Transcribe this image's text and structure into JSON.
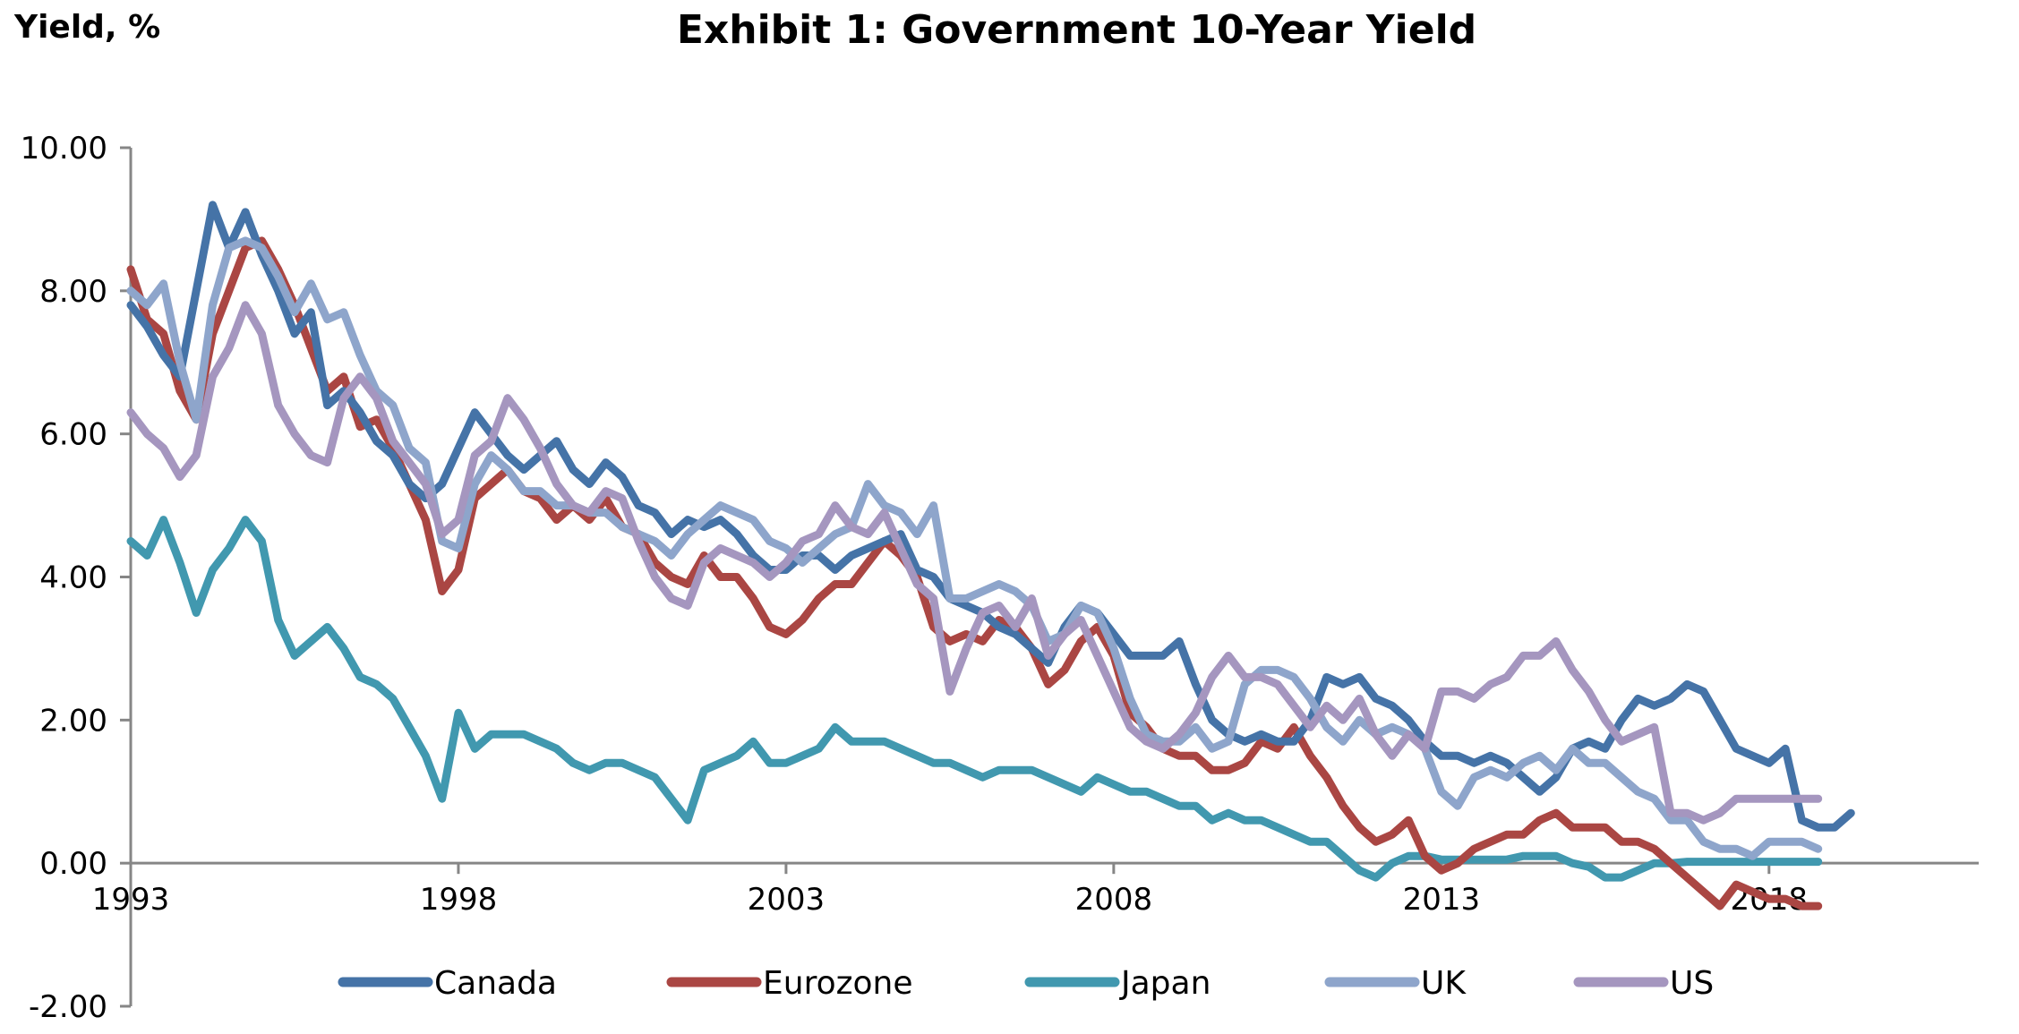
{
  "header": {
    "ylabel": "Yield, %",
    "title": "Exhibit 1: Government 10-Year Yield"
  },
  "chart_data": {
    "type": "line",
    "title": "Exhibit 1: Government 10-Year Yield",
    "xlabel": "",
    "ylabel": "Yield, %",
    "xlim": [
      1993,
      2021.2
    ],
    "ylim": [
      -2,
      10
    ],
    "y_ticks": [
      -2,
      0,
      2,
      4,
      6,
      8,
      10
    ],
    "y_tick_labels": [
      "-2.00",
      "0.00",
      "2.00",
      "4.00",
      "6.00",
      "8.00",
      "10.00"
    ],
    "x_ticks": [
      1993,
      1998,
      2003,
      2008,
      2013,
      2018
    ],
    "x_tick_labels": [
      "1993",
      "1998",
      "2003",
      "2008",
      "2013",
      "2018"
    ],
    "grid": false,
    "legend_position": "bottom",
    "x_start": 1993,
    "x_step": 0.25,
    "series": [
      {
        "name": "Canada",
        "color": "#4573A7",
        "values": [
          7.8,
          7.5,
          7.1,
          6.8,
          8.0,
          9.2,
          8.6,
          9.1,
          8.5,
          8.0,
          7.4,
          7.7,
          6.4,
          6.6,
          6.3,
          5.9,
          5.7,
          5.3,
          5.1,
          5.3,
          5.8,
          6.3,
          6.0,
          5.7,
          5.5,
          5.7,
          5.9,
          5.5,
          5.3,
          5.6,
          5.4,
          5.0,
          4.9,
          4.6,
          4.8,
          4.7,
          4.8,
          4.6,
          4.3,
          4.1,
          4.1,
          4.3,
          4.3,
          4.1,
          4.3,
          4.4,
          4.5,
          4.6,
          4.1,
          4.0,
          3.7,
          3.6,
          3.5,
          3.3,
          3.2,
          3.0,
          2.8,
          3.3,
          3.6,
          3.5,
          3.2,
          2.9,
          2.9,
          2.9,
          3.1,
          2.5,
          2.0,
          1.8,
          1.7,
          1.8,
          1.7,
          1.7,
          2.0,
          2.6,
          2.5,
          2.6,
          2.3,
          2.2,
          2.0,
          1.7,
          1.5,
          1.5,
          1.4,
          1.5,
          1.4,
          1.2,
          1.0,
          1.2,
          1.6,
          1.7,
          1.6,
          2.0,
          2.3,
          2.2,
          2.3,
          2.5,
          2.4,
          2.0,
          1.6,
          1.5,
          1.4,
          1.6,
          0.6,
          0.5,
          0.5,
          0.7
        ]
      },
      {
        "name": "Eurozone",
        "color": "#AA4643",
        "values": [
          8.3,
          7.6,
          7.4,
          6.6,
          6.2,
          7.4,
          8.0,
          8.6,
          8.7,
          8.3,
          7.8,
          7.2,
          6.6,
          6.8,
          6.1,
          6.2,
          5.8,
          5.3,
          4.8,
          3.8,
          4.1,
          5.1,
          5.3,
          5.5,
          5.2,
          5.1,
          4.8,
          5.0,
          4.8,
          5.1,
          4.7,
          4.6,
          4.2,
          4.0,
          3.9,
          4.3,
          4.0,
          4.0,
          3.7,
          3.3,
          3.2,
          3.4,
          3.7,
          3.9,
          3.9,
          4.2,
          4.5,
          4.3,
          4.0,
          3.3,
          3.1,
          3.2,
          3.1,
          3.4,
          3.3,
          3.0,
          2.5,
          2.7,
          3.1,
          3.3,
          2.9,
          2.1,
          1.9,
          1.6,
          1.5,
          1.5,
          1.3,
          1.3,
          1.4,
          1.7,
          1.6,
          1.9,
          1.5,
          1.2,
          0.8,
          0.5,
          0.3,
          0.4,
          0.6,
          0.1,
          -0.1,
          0.0,
          0.2,
          0.3,
          0.4,
          0.4,
          0.6,
          0.7,
          0.5,
          0.5,
          0.5,
          0.3,
          0.3,
          0.2,
          0.0,
          -0.2,
          -0.4,
          -0.6,
          -0.3,
          -0.4,
          -0.5,
          -0.5,
          -0.6,
          -0.6
        ]
      },
      {
        "name": "Japan",
        "color": "#4198AF",
        "values": [
          4.5,
          4.3,
          4.8,
          4.2,
          3.5,
          4.1,
          4.4,
          4.8,
          4.5,
          3.4,
          2.9,
          3.1,
          3.3,
          3.0,
          2.6,
          2.5,
          2.3,
          1.9,
          1.5,
          0.9,
          2.1,
          1.6,
          1.8,
          1.8,
          1.8,
          1.7,
          1.6,
          1.4,
          1.3,
          1.4,
          1.4,
          1.3,
          1.2,
          0.9,
          0.6,
          1.3,
          1.4,
          1.5,
          1.7,
          1.4,
          1.4,
          1.5,
          1.6,
          1.9,
          1.7,
          1.7,
          1.7,
          1.6,
          1.5,
          1.4,
          1.4,
          1.3,
          1.2,
          1.3,
          1.3,
          1.3,
          1.2,
          1.1,
          1.0,
          1.2,
          1.1,
          1.0,
          1.0,
          0.9,
          0.8,
          0.8,
          0.6,
          0.7,
          0.6,
          0.6,
          0.5,
          0.4,
          0.3,
          0.3,
          0.1,
          -0.1,
          -0.2,
          0.0,
          0.1,
          0.1,
          0.05,
          0.05,
          0.05,
          0.05,
          0.05,
          0.1,
          0.1,
          0.1,
          0.0,
          -0.05,
          -0.2,
          -0.2,
          -0.1,
          0.0,
          0.0,
          0.02,
          0.02,
          0.02,
          0.02,
          0.02,
          0.02,
          0.02,
          0.02,
          0.02
        ]
      },
      {
        "name": "UK",
        "color": "#8EA5CB",
        "values": [
          8.0,
          7.8,
          8.1,
          7.0,
          6.2,
          7.8,
          8.6,
          8.7,
          8.6,
          8.2,
          7.7,
          8.1,
          7.6,
          7.7,
          7.1,
          6.6,
          6.4,
          5.8,
          5.6,
          4.5,
          4.4,
          5.3,
          5.7,
          5.5,
          5.2,
          5.2,
          5.0,
          5.0,
          4.9,
          4.9,
          4.7,
          4.6,
          4.5,
          4.3,
          4.6,
          4.8,
          5.0,
          4.9,
          4.8,
          4.5,
          4.4,
          4.2,
          4.4,
          4.6,
          4.7,
          5.3,
          5.0,
          4.9,
          4.6,
          5.0,
          3.7,
          3.7,
          3.8,
          3.9,
          3.8,
          3.6,
          3.1,
          3.2,
          3.6,
          3.5,
          3.0,
          2.3,
          1.8,
          1.7,
          1.7,
          1.9,
          1.6,
          1.7,
          2.5,
          2.7,
          2.7,
          2.6,
          2.3,
          1.9,
          1.7,
          2.0,
          1.8,
          1.9,
          1.8,
          1.6,
          1.0,
          0.8,
          1.2,
          1.3,
          1.2,
          1.4,
          1.5,
          1.3,
          1.6,
          1.4,
          1.4,
          1.2,
          1.0,
          0.9,
          0.6,
          0.6,
          0.3,
          0.2,
          0.2,
          0.1,
          0.3,
          0.3,
          0.3,
          0.2
        ]
      },
      {
        "name": "US",
        "color": "#A596BF",
        "values": [
          6.3,
          6.0,
          5.8,
          5.4,
          5.7,
          6.8,
          7.2,
          7.8,
          7.4,
          6.4,
          6.0,
          5.7,
          5.6,
          6.5,
          6.8,
          6.5,
          5.9,
          5.6,
          5.3,
          4.6,
          4.8,
          5.7,
          5.9,
          6.5,
          6.2,
          5.8,
          5.3,
          5.0,
          4.9,
          5.2,
          5.1,
          4.5,
          4.0,
          3.7,
          3.6,
          4.2,
          4.4,
          4.3,
          4.2,
          4.0,
          4.2,
          4.5,
          4.6,
          5.0,
          4.7,
          4.6,
          4.9,
          4.4,
          3.9,
          3.7,
          2.4,
          3.0,
          3.5,
          3.6,
          3.3,
          3.7,
          2.9,
          3.2,
          3.4,
          2.9,
          2.4,
          1.9,
          1.7,
          1.6,
          1.8,
          2.1,
          2.6,
          2.9,
          2.6,
          2.6,
          2.5,
          2.2,
          1.9,
          2.2,
          2.0,
          2.3,
          1.8,
          1.5,
          1.8,
          1.6,
          2.4,
          2.4,
          2.3,
          2.5,
          2.6,
          2.9,
          2.9,
          3.1,
          2.7,
          2.4,
          2.0,
          1.7,
          1.8,
          1.9,
          0.7,
          0.7,
          0.6,
          0.7,
          0.9,
          0.9,
          0.9,
          0.9,
          0.9,
          0.9
        ]
      }
    ]
  }
}
